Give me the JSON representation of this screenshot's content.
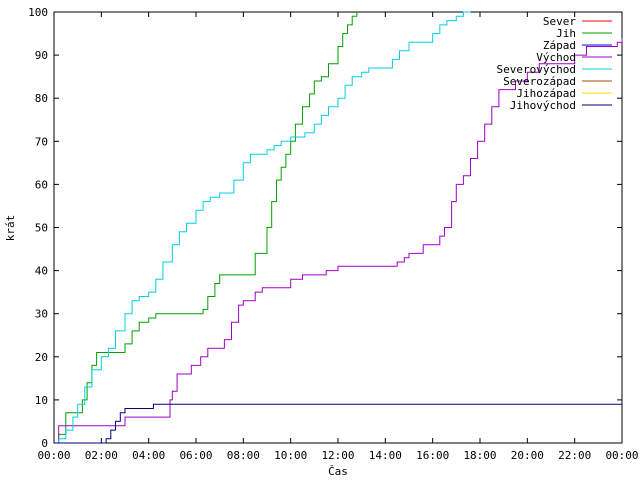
{
  "chart_data": {
    "type": "line",
    "title": "",
    "xlabel": "Čas",
    "ylabel": "krát",
    "ylim": [
      0,
      100
    ],
    "yticks": [
      0,
      10,
      20,
      30,
      40,
      50,
      60,
      70,
      80,
      90,
      100
    ],
    "xlim_hours": [
      0,
      24
    ],
    "xticks": [
      "00:00",
      "02:00",
      "04:00",
      "06:00",
      "08:00",
      "10:00",
      "12:00",
      "14:00",
      "16:00",
      "18:00",
      "20:00",
      "22:00",
      "00:00"
    ],
    "grid": false,
    "legend_position": "top-right",
    "series": [
      {
        "name": "Sever",
        "color": "#ff0000",
        "x": [],
        "y": []
      },
      {
        "name": "Jih",
        "color": "#00a000",
        "x": [
          0,
          0.2,
          0.5,
          1.0,
          1.2,
          1.4,
          1.6,
          1.8,
          2.0,
          2.6,
          2.8,
          3.0,
          3.3,
          3.6,
          4.0,
          4.3,
          4.6,
          5.0,
          5.5,
          6.0,
          6.3,
          6.5,
          6.8,
          7.0,
          7.5,
          8.0,
          8.5,
          8.8,
          9.0,
          9.2,
          9.4,
          9.6,
          9.8,
          10.0,
          10.2,
          10.5,
          10.8,
          11.0,
          11.3,
          11.6,
          12.0,
          12.2,
          12.4,
          12.6,
          12.8
        ],
        "y": [
          0,
          2,
          7,
          7,
          10,
          14,
          18,
          21,
          21,
          21,
          21,
          23,
          26,
          28,
          29,
          30,
          30,
          30,
          30,
          30,
          31,
          34,
          37,
          39,
          39,
          39,
          44,
          44,
          50,
          56,
          61,
          64,
          67,
          70,
          74,
          78,
          81,
          84,
          85,
          88,
          92,
          95,
          97,
          99,
          100
        ]
      },
      {
        "name": "Západ",
        "color": "#0000ff",
        "x": [],
        "y": []
      },
      {
        "name": "Východ",
        "color": "#a000c8",
        "x": [
          0,
          0.2,
          0.8,
          1.5,
          2.2,
          2.7,
          3.0,
          3.5,
          4.0,
          4.6,
          4.9,
          5.0,
          5.2,
          5.5,
          5.8,
          6.2,
          6.5,
          6.8,
          7.2,
          7.5,
          7.8,
          8.0,
          8.2,
          8.5,
          8.8,
          9.2,
          9.6,
          10.0,
          10.5,
          11.0,
          11.5,
          12.0,
          12.5,
          13.0,
          13.5,
          14.0,
          14.5,
          14.8,
          15.0,
          15.3,
          15.6,
          16.0,
          16.3,
          16.5,
          16.8,
          17.0,
          17.3,
          17.6,
          17.9,
          18.2,
          18.5,
          18.8,
          19.2,
          19.5,
          20.0,
          20.5,
          21.0,
          21.5,
          22.0,
          22.5,
          23.0,
          23.5,
          23.8,
          24.0
        ],
        "y": [
          0,
          4,
          4,
          4,
          4,
          4,
          6,
          6,
          6,
          6,
          10,
          12,
          16,
          16,
          18,
          20,
          22,
          22,
          24,
          28,
          32,
          33,
          33,
          35,
          36,
          36,
          36,
          38,
          39,
          39,
          40,
          41,
          41,
          41,
          41,
          41,
          42,
          43,
          44,
          44,
          46,
          46,
          48,
          50,
          56,
          60,
          62,
          66,
          70,
          74,
          78,
          82,
          82,
          84,
          86,
          88,
          88,
          88,
          90,
          92,
          92,
          92,
          93,
          94
        ]
      },
      {
        "name": "Severovýchod",
        "color": "#00d0e0",
        "x": [
          0,
          0.2,
          0.5,
          0.8,
          1.0,
          1.3,
          1.6,
          2.0,
          2.3,
          2.6,
          3.0,
          3.3,
          3.6,
          4.0,
          4.3,
          4.6,
          5.0,
          5.3,
          5.6,
          6.0,
          6.3,
          6.6,
          7.0,
          7.3,
          7.6,
          8.0,
          8.3,
          8.6,
          9.0,
          9.3,
          9.6,
          10.0,
          10.3,
          10.6,
          11.0,
          11.3,
          11.6,
          12.0,
          12.3,
          12.6,
          13.0,
          13.3,
          13.6,
          14.0,
          14.3,
          14.6,
          15.0,
          15.3,
          15.6,
          16.0,
          16.3,
          16.6,
          17.0,
          17.3,
          17.6
        ],
        "y": [
          0,
          1,
          3,
          6,
          9,
          13,
          17,
          20,
          22,
          26,
          30,
          33,
          34,
          35,
          38,
          42,
          46,
          49,
          51,
          54,
          56,
          57,
          58,
          58,
          61,
          65,
          67,
          67,
          68,
          69,
          70,
          71,
          71,
          72,
          74,
          76,
          78,
          80,
          83,
          85,
          86,
          87,
          87,
          87,
          89,
          91,
          93,
          93,
          93,
          95,
          97,
          98,
          99,
          100,
          100
        ]
      },
      {
        "name": "Severozápad",
        "color": "#a05000",
        "x": [],
        "y": []
      },
      {
        "name": "Jihozápad",
        "color": "#ffd700",
        "x": [],
        "y": []
      },
      {
        "name": "Jihovýchod",
        "color": "#000080",
        "x": [
          0,
          2.0,
          2.2,
          2.4,
          2.6,
          2.8,
          3.0,
          3.4,
          3.8,
          4.2,
          4.6,
          5.0,
          6.0,
          8.0,
          10.0,
          12.0,
          14.0,
          16.0,
          18.0,
          20.0,
          22.0,
          24.0
        ],
        "y": [
          0,
          0,
          1,
          3,
          5,
          7,
          8,
          8,
          8,
          9,
          9,
          9,
          9,
          9,
          9,
          9,
          9,
          9,
          9,
          9,
          9,
          9
        ]
      }
    ]
  }
}
